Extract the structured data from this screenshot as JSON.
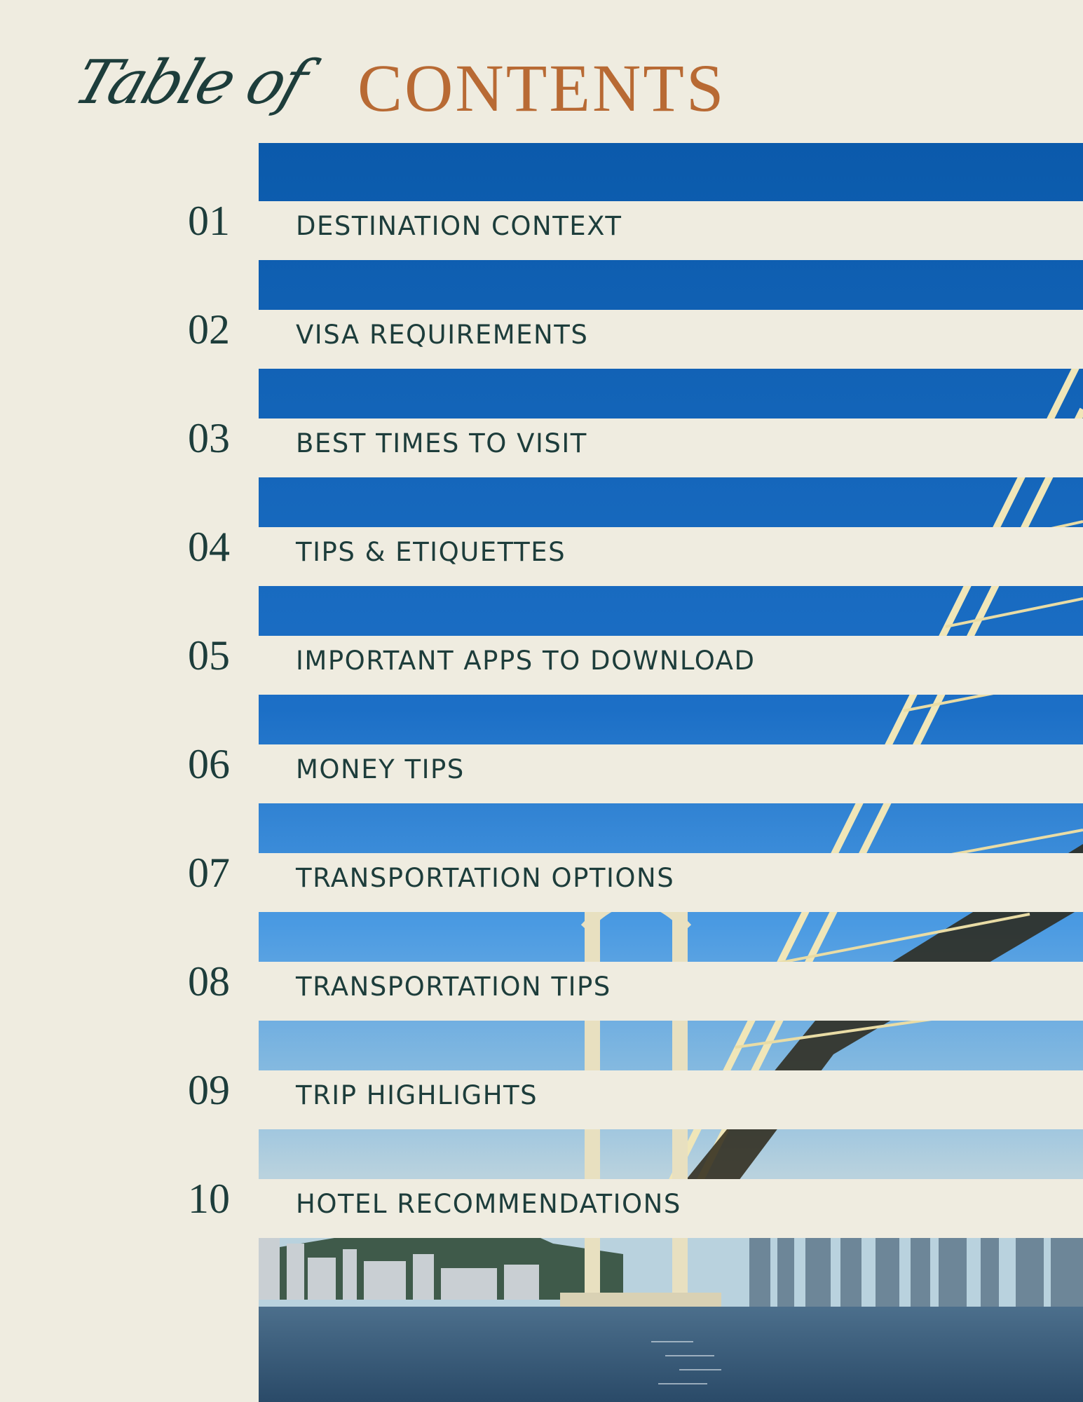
{
  "title": {
    "script": "Table of",
    "main": "CONTENTS"
  },
  "colors": {
    "background": "#efece0",
    "heading_dark": "#1d3d3b",
    "accent": "#b86a34",
    "sky": "#1560b5"
  },
  "image": {
    "subject": "suspension bridge over harbor with city skyline",
    "icon": "photo"
  },
  "entries": [
    {
      "number": "01",
      "label": "DESTINATION CONTEXT"
    },
    {
      "number": "02",
      "label": "VISA REQUIREMENTS"
    },
    {
      "number": "03",
      "label": "BEST TIMES TO VISIT"
    },
    {
      "number": "04",
      "label": "TIPS & ETIQUETTES"
    },
    {
      "number": "05",
      "label": "IMPORTANT APPS TO DOWNLOAD"
    },
    {
      "number": "06",
      "label": "MONEY TIPS"
    },
    {
      "number": "07",
      "label": "TRANSPORTATION OPTIONS"
    },
    {
      "number": "08",
      "label": "TRANSPORTATION TIPS"
    },
    {
      "number": "09",
      "label": "TRIP HIGHLIGHTS"
    },
    {
      "number": "10",
      "label": "HOTEL RECOMMENDATIONS"
    }
  ]
}
